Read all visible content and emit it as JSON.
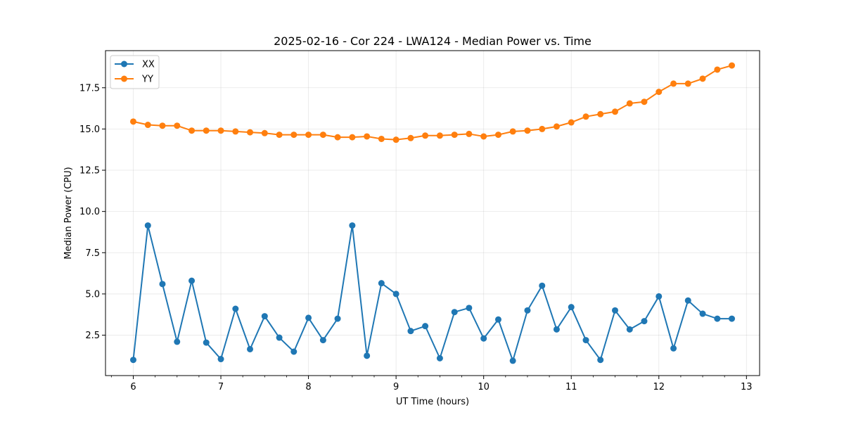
{
  "chart_data": {
    "type": "line",
    "title": "2025-02-16 - Cor 224 - LWA124 - Median Power vs. Time",
    "xlabel": "UT Time (hours)",
    "ylabel": "Median Power (CPU)",
    "xlim": [
      5.683,
      13.15
    ],
    "ylim": [
      0.05,
      19.75
    ],
    "xticks": [
      6,
      7,
      8,
      9,
      10,
      11,
      12,
      13
    ],
    "xtick_labels": [
      "6",
      "7",
      "8",
      "9",
      "10",
      "11",
      "12",
      "13"
    ],
    "yticks": [
      2.5,
      5.0,
      7.5,
      10.0,
      12.5,
      15.0,
      17.5
    ],
    "ytick_labels": [
      "2.5",
      "5.0",
      "7.5",
      "10.0",
      "12.5",
      "15.0",
      "17.5"
    ],
    "grid": true,
    "legend_position": "top-left",
    "x": [
      6.0,
      6.167,
      6.333,
      6.5,
      6.667,
      6.833,
      7.0,
      7.167,
      7.333,
      7.5,
      7.667,
      7.833,
      8.0,
      8.167,
      8.333,
      8.5,
      8.667,
      8.833,
      9.0,
      9.167,
      9.333,
      9.5,
      9.667,
      9.833,
      10.0,
      10.167,
      10.333,
      10.5,
      10.667,
      10.833,
      11.0,
      11.167,
      11.333,
      11.5,
      11.667,
      11.833,
      12.0,
      12.167,
      12.333,
      12.5,
      12.667,
      12.833
    ],
    "series": [
      {
        "name": "XX",
        "color": "#1f77b4",
        "values": [
          1.0,
          9.15,
          5.6,
          2.1,
          5.8,
          2.05,
          1.05,
          4.1,
          1.65,
          3.65,
          2.35,
          1.5,
          3.55,
          2.2,
          3.5,
          9.15,
          1.25,
          5.65,
          5.0,
          2.75,
          3.05,
          1.1,
          3.9,
          4.15,
          2.3,
          3.45,
          0.95,
          4.0,
          5.5,
          2.85,
          4.2,
          2.2,
          1.0,
          4.0,
          2.85,
          3.35,
          4.85,
          1.7,
          4.6,
          3.8,
          3.5,
          3.5
        ]
      },
      {
        "name": "YY",
        "color": "#ff7f0e",
        "values": [
          15.45,
          15.25,
          15.2,
          15.2,
          14.9,
          14.9,
          14.9,
          14.85,
          14.8,
          14.75,
          14.65,
          14.65,
          14.65,
          14.65,
          14.5,
          14.5,
          14.55,
          14.4,
          14.35,
          14.45,
          14.6,
          14.6,
          14.65,
          14.7,
          14.55,
          14.65,
          14.85,
          14.9,
          15.0,
          15.15,
          15.4,
          15.75,
          15.9,
          16.05,
          16.55,
          16.65,
          17.25,
          17.75,
          17.75,
          18.05,
          18.6,
          18.85
        ]
      }
    ]
  }
}
